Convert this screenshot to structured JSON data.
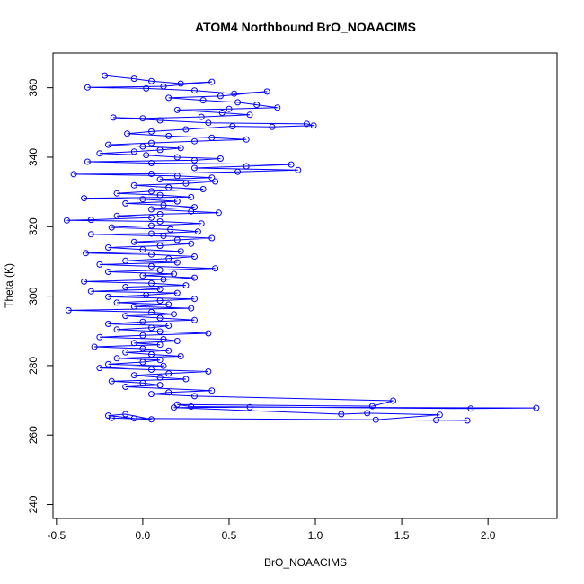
{
  "chart_data": {
    "type": "scatter",
    "title": "ATOM4 Northbound BrO_NOAACIMS",
    "xlabel": "BrO_NOAACIMS",
    "ylabel": "Theta (K)",
    "xlim": [
      -0.52,
      2.4
    ],
    "ylim": [
      236,
      370
    ],
    "x_ticks": [
      -0.5,
      0.0,
      0.5,
      1.0,
      1.5,
      2.0
    ],
    "x_tick_labels": [
      "-0.5",
      "0.0",
      "0.5",
      "1.0",
      "1.5",
      "2.0"
    ],
    "y_ticks": [
      240,
      260,
      280,
      300,
      320,
      340,
      360
    ],
    "y_tick_labels": [
      "240",
      "260",
      "280",
      "300",
      "320",
      "340",
      "360"
    ],
    "grid": false,
    "legend": "none",
    "point_style": "open-circle",
    "connected": true,
    "color": "#0000ff",
    "series": [
      {
        "points": [
          [
            -0.22,
            363.5
          ],
          [
            -0.05,
            362.6
          ],
          [
            0.05,
            361.9
          ],
          [
            0.22,
            361.2
          ],
          [
            0.4,
            361.7
          ],
          [
            0.12,
            360.4
          ],
          [
            -0.32,
            360.1
          ],
          [
            0.02,
            359.8
          ],
          [
            0.3,
            359.2
          ],
          [
            0.53,
            358.3
          ],
          [
            0.72,
            358.9
          ],
          [
            0.45,
            357.6
          ],
          [
            0.15,
            357.1
          ],
          [
            0.35,
            356.4
          ],
          [
            0.55,
            355.8
          ],
          [
            0.66,
            355.1
          ],
          [
            0.78,
            354.3
          ],
          [
            0.5,
            353.9
          ],
          [
            0.2,
            353.6
          ],
          [
            0.46,
            352.8
          ],
          [
            0.62,
            352.2
          ],
          [
            0.34,
            351.6
          ],
          [
            0.0,
            351.2
          ],
          [
            -0.17,
            351.4
          ],
          [
            0.1,
            350.6
          ],
          [
            0.38,
            349.9
          ],
          [
            0.95,
            349.6
          ],
          [
            0.99,
            349.1
          ],
          [
            0.75,
            348.7
          ],
          [
            0.52,
            348.9
          ],
          [
            0.25,
            348.0
          ],
          [
            0.05,
            347.4
          ],
          [
            -0.09,
            346.8
          ],
          [
            0.15,
            346.1
          ],
          [
            0.4,
            345.6
          ],
          [
            0.6,
            345.1
          ],
          [
            0.3,
            344.6
          ],
          [
            0.05,
            344.1
          ],
          [
            -0.2,
            343.6
          ],
          [
            0.0,
            343.1
          ],
          [
            0.22,
            342.6
          ],
          [
            0.1,
            342.1
          ],
          [
            -0.05,
            341.6
          ],
          [
            -0.25,
            341.1
          ],
          [
            0.02,
            340.6
          ],
          [
            0.2,
            340.0
          ],
          [
            0.45,
            339.6
          ],
          [
            0.3,
            339.1
          ],
          [
            -0.32,
            338.7
          ],
          [
            0.05,
            338.3
          ],
          [
            0.86,
            337.9
          ],
          [
            0.6,
            337.4
          ],
          [
            0.3,
            336.9
          ],
          [
            0.9,
            336.3
          ],
          [
            0.55,
            335.8
          ],
          [
            0.05,
            335.2
          ],
          [
            -0.4,
            335.1
          ],
          [
            0.2,
            334.6
          ],
          [
            0.4,
            334.1
          ],
          [
            0.1,
            333.6
          ],
          [
            0.42,
            333.0
          ],
          [
            0.25,
            332.4
          ],
          [
            -0.05,
            331.9
          ],
          [
            0.15,
            331.3
          ],
          [
            0.35,
            330.8
          ],
          [
            0.05,
            330.2
          ],
          [
            -0.15,
            329.6
          ],
          [
            0.1,
            329.1
          ],
          [
            0.28,
            328.5
          ],
          [
            -0.34,
            328.2
          ],
          [
            0.0,
            327.9
          ],
          [
            0.2,
            327.3
          ],
          [
            -0.1,
            326.7
          ],
          [
            0.12,
            326.2
          ],
          [
            0.3,
            325.6
          ],
          [
            0.05,
            325.0
          ],
          [
            0.28,
            324.4
          ],
          [
            0.44,
            324.0
          ],
          [
            0.1,
            323.6
          ],
          [
            -0.15,
            323.1
          ],
          [
            0.05,
            322.6
          ],
          [
            -0.3,
            322.0
          ],
          [
            -0.44,
            321.8
          ],
          [
            0.1,
            321.5
          ],
          [
            0.34,
            320.9
          ],
          [
            0.05,
            320.3
          ],
          [
            -0.18,
            319.8
          ],
          [
            0.16,
            319.2
          ],
          [
            0.32,
            318.6
          ],
          [
            0.05,
            318.0
          ],
          [
            -0.3,
            317.8
          ],
          [
            0.12,
            317.3
          ],
          [
            0.4,
            316.7
          ],
          [
            0.2,
            316.2
          ],
          [
            -0.05,
            315.6
          ],
          [
            0.28,
            315.1
          ],
          [
            0.1,
            314.5
          ],
          [
            -0.2,
            314.0
          ],
          [
            0.0,
            313.4
          ],
          [
            0.22,
            312.9
          ],
          [
            -0.33,
            312.4
          ],
          [
            0.05,
            312.0
          ],
          [
            0.3,
            311.4
          ],
          [
            0.15,
            310.8
          ],
          [
            -0.1,
            310.2
          ],
          [
            0.2,
            309.7
          ],
          [
            -0.25,
            309.1
          ],
          [
            0.05,
            308.6
          ],
          [
            0.42,
            308.0
          ],
          [
            0.1,
            307.5
          ],
          [
            -0.2,
            307.0
          ],
          [
            0.18,
            306.4
          ],
          [
            0.0,
            305.9
          ],
          [
            0.3,
            305.3
          ],
          [
            0.12,
            304.8
          ],
          [
            -0.34,
            304.2
          ],
          [
            0.05,
            303.7
          ],
          [
            0.25,
            303.1
          ],
          [
            -0.1,
            302.6
          ],
          [
            0.1,
            302.0
          ],
          [
            -0.3,
            301.4
          ],
          [
            0.2,
            300.9
          ],
          [
            0.02,
            300.3
          ],
          [
            -0.2,
            299.8
          ],
          [
            0.3,
            299.2
          ],
          [
            0.1,
            298.7
          ],
          [
            -0.15,
            298.1
          ],
          [
            0.15,
            297.6
          ],
          [
            -0.05,
            297.0
          ],
          [
            0.28,
            296.5
          ],
          [
            -0.43,
            295.9
          ],
          [
            0.05,
            295.4
          ],
          [
            0.18,
            294.8
          ],
          [
            -0.1,
            294.3
          ],
          [
            0.1,
            293.7
          ],
          [
            0.3,
            293.1
          ],
          [
            0.0,
            292.6
          ],
          [
            -0.2,
            292.0
          ],
          [
            0.15,
            291.5
          ],
          [
            0.05,
            290.9
          ],
          [
            -0.15,
            290.4
          ],
          [
            0.1,
            289.8
          ],
          [
            0.38,
            289.3
          ],
          [
            0.0,
            288.7
          ],
          [
            -0.25,
            288.2
          ],
          [
            0.12,
            287.6
          ],
          [
            0.2,
            287.1
          ],
          [
            -0.05,
            286.5
          ],
          [
            0.1,
            286.0
          ],
          [
            -0.28,
            285.4
          ],
          [
            0.0,
            284.9
          ],
          [
            0.15,
            284.3
          ],
          [
            -0.1,
            283.8
          ],
          [
            0.05,
            283.2
          ],
          [
            0.22,
            282.7
          ],
          [
            -0.15,
            282.1
          ],
          [
            0.1,
            281.6
          ],
          [
            0.0,
            281.0
          ],
          [
            -0.2,
            280.4
          ],
          [
            0.12,
            279.9
          ],
          [
            -0.25,
            279.3
          ],
          [
            0.05,
            278.8
          ],
          [
            0.38,
            278.3
          ],
          [
            0.15,
            277.7
          ],
          [
            -0.05,
            277.2
          ],
          [
            0.1,
            276.6
          ],
          [
            0.25,
            276.1
          ],
          [
            -0.18,
            275.5
          ],
          [
            0.0,
            275.0
          ],
          [
            0.1,
            274.4
          ],
          [
            -0.1,
            273.9
          ],
          [
            0.4,
            272.8
          ],
          [
            0.15,
            272.3
          ],
          [
            0.05,
            271.8
          ],
          [
            0.3,
            271.2
          ],
          [
            1.45,
            269.9
          ],
          [
            1.33,
            268.3
          ],
          [
            0.2,
            268.8
          ],
          [
            0.28,
            268.2
          ],
          [
            1.9,
            267.6
          ],
          [
            2.28,
            267.8
          ],
          [
            0.62,
            268.0
          ],
          [
            0.18,
            267.9
          ],
          [
            1.15,
            266.0
          ],
          [
            1.3,
            266.3
          ],
          [
            1.72,
            265.8
          ],
          [
            1.35,
            264.4
          ],
          [
            1.88,
            264.2
          ],
          [
            1.7,
            264.3
          ],
          [
            -0.05,
            264.8
          ],
          [
            -0.2,
            265.6
          ],
          [
            -0.1,
            266.0
          ],
          [
            0.05,
            264.5
          ],
          [
            -0.18,
            264.9
          ]
        ]
      }
    ]
  }
}
